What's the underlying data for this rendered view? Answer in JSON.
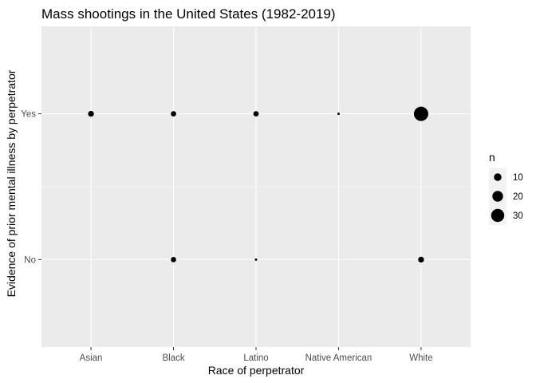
{
  "chart_data": {
    "type": "scatter",
    "title": "Mass shootings in the United States (1982-2019)",
    "xlabel": "Race of perpetrator",
    "ylabel": "Evidence of prior mental illness by perpetrator",
    "x_categories": [
      "Asian",
      "Black",
      "Latino",
      "Native American",
      "White"
    ],
    "y_categories": [
      "No",
      "Yes"
    ],
    "points": [
      {
        "x": "Asian",
        "y": "Yes",
        "n": 6
      },
      {
        "x": "Black",
        "y": "Yes",
        "n": 5
      },
      {
        "x": "Latino",
        "y": "Yes",
        "n": 5
      },
      {
        "x": "Native American",
        "y": "Yes",
        "n": 1
      },
      {
        "x": "White",
        "y": "Yes",
        "n": 36
      },
      {
        "x": "Black",
        "y": "No",
        "n": 5
      },
      {
        "x": "Latino",
        "y": "No",
        "n": 1
      },
      {
        "x": "White",
        "y": "No",
        "n": 6
      }
    ],
    "size_legend": {
      "title": "n",
      "breaks": [
        10,
        20,
        30
      ],
      "labels": [
        "10",
        "20",
        "30"
      ]
    },
    "grid": true,
    "legend_position": "right",
    "colors": {
      "panel_background": "#ebebeb",
      "grid": "#ffffff",
      "point": "#000000",
      "tick_label": "#4d4d4d",
      "legend_key_background": "#f2f2f2"
    }
  }
}
